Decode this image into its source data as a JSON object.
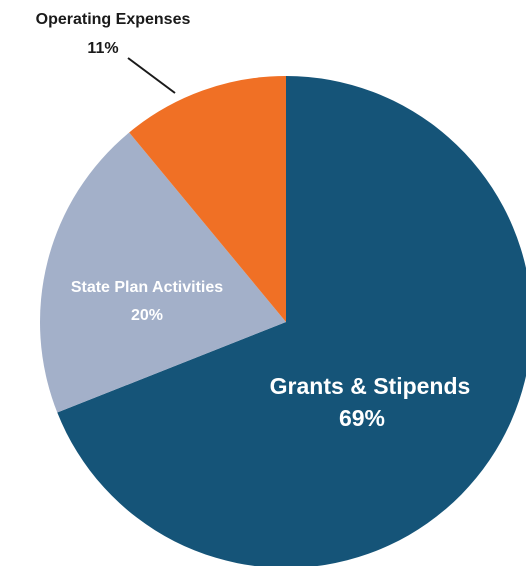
{
  "chart_data": {
    "type": "pie",
    "slices": [
      {
        "label": "Grants & Stipends",
        "percent_label": "69%",
        "value": 69,
        "color": "#155478",
        "label_color": "#ffffff"
      },
      {
        "label": "State Plan Activities",
        "percent_label": "20%",
        "value": 20,
        "color": "#a3b0c9",
        "label_color": "#ffffff"
      },
      {
        "label": "Operating Expenses",
        "percent_label": "11%",
        "value": 11,
        "color": "#f07025",
        "label_color": "#1a1a1a"
      }
    ],
    "start_angle_deg": 0,
    "direction": "clockwise"
  }
}
